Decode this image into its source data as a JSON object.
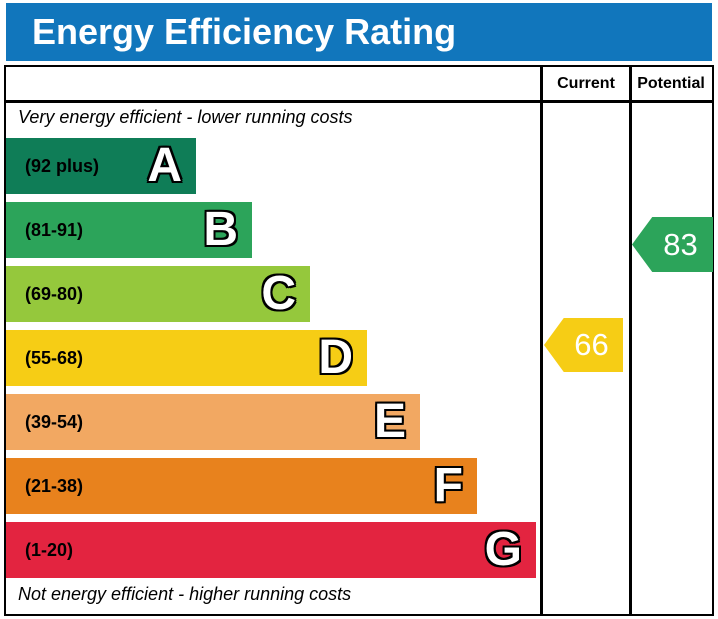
{
  "title": "Energy Efficiency Rating",
  "colors": {
    "title_bar": "#1176bc",
    "border": "#000000"
  },
  "table": {
    "headers": {
      "current": "Current",
      "potential": "Potential"
    }
  },
  "chart_data": {
    "type": "bar",
    "variant": "epc-energy-efficiency-rating",
    "title": "Energy Efficiency Rating",
    "top_caption": "Very energy efficient - lower running costs",
    "bottom_caption": "Not energy efficient - higher running costs",
    "columns": [
      "Current",
      "Potential"
    ],
    "bands": [
      {
        "letter": "A",
        "range_label": "(92 plus)",
        "range_min": 92,
        "range_max": 100,
        "color": "#0f7d57"
      },
      {
        "letter": "B",
        "range_label": "(81-91)",
        "range_min": 81,
        "range_max": 91,
        "color": "#2ca45a"
      },
      {
        "letter": "C",
        "range_label": "(69-80)",
        "range_min": 69,
        "range_max": 80,
        "color": "#95c83c"
      },
      {
        "letter": "D",
        "range_label": "(55-68)",
        "range_min": 55,
        "range_max": 68,
        "color": "#f6cd15"
      },
      {
        "letter": "E",
        "range_label": "(39-54)",
        "range_min": 39,
        "range_max": 54,
        "color": "#f2a862"
      },
      {
        "letter": "F",
        "range_label": "(21-38)",
        "range_min": 21,
        "range_max": 38,
        "color": "#e8821d"
      },
      {
        "letter": "G",
        "range_label": "(1-20)",
        "range_min": 1,
        "range_max": 20,
        "color": "#e32440"
      }
    ],
    "current": {
      "value": "66",
      "band": "D",
      "color": "#f6cd15"
    },
    "potential": {
      "value": "83",
      "band": "B",
      "color": "#2ca45a"
    }
  }
}
